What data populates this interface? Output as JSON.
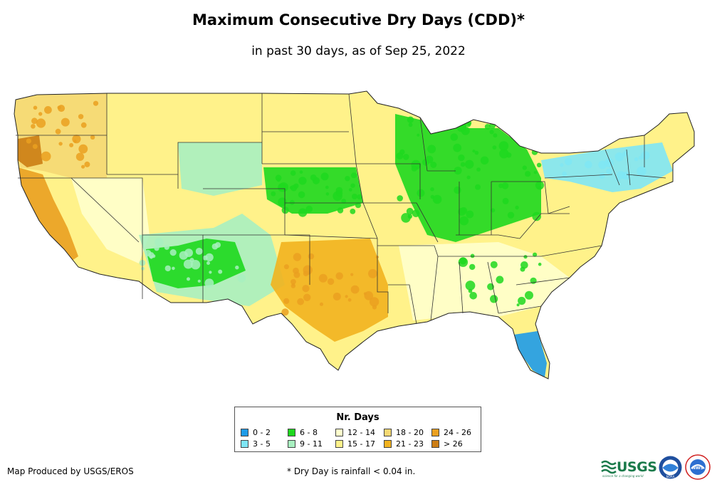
{
  "header": {
    "title": "Maximum Consecutive Dry Days (CDD)*",
    "subtitle": "in past 30 days, as of Sep 25, 2022"
  },
  "legend": {
    "title": "Nr. Days",
    "items": [
      {
        "label": "0 - 2",
        "color": "#1e9be8"
      },
      {
        "label": "3 - 5",
        "color": "#7fe6f5"
      },
      {
        "label": "6 - 8",
        "color": "#1ed81e"
      },
      {
        "label": "9 - 11",
        "color": "#a8f0c0"
      },
      {
        "label": "12 - 14",
        "color": "#ffffcc"
      },
      {
        "label": "15 - 17",
        "color": "#fff28a"
      },
      {
        "label": "18 - 20",
        "color": "#f5d873"
      },
      {
        "label": "21 - 23",
        "color": "#f2b21e"
      },
      {
        "label": "24 - 26",
        "color": "#eaa020"
      },
      {
        "label": "> 26",
        "color": "#cc7d14"
      }
    ]
  },
  "footer": {
    "credit": "Map Produced by USGS/EROS",
    "note": "* Dry Day is rainfall < 0.04 in."
  },
  "logos": {
    "usgs_word": "USGS",
    "usgs_tagline": "science for a changing world",
    "noaa_text": "NOAA",
    "nws_text": "NWS"
  },
  "map_layers": [
    {
      "name": "pacific-northwest-dry",
      "legend_index": 6
    },
    {
      "name": "california-coast-very-dry",
      "legend_index": 8
    },
    {
      "name": "great-basin-dry",
      "legend_index": 4
    },
    {
      "name": "southwest-monsoon-wet",
      "legend_index": 3
    },
    {
      "name": "southwest-green",
      "legend_index": 2
    },
    {
      "name": "texas-oklahoma-dry",
      "legend_index": 7
    },
    {
      "name": "upper-midwest-green",
      "legend_index": 2
    },
    {
      "name": "great-lakes-wet",
      "legend_index": 2
    },
    {
      "name": "northeast-very-wet",
      "legend_index": 1
    },
    {
      "name": "southeast-dry",
      "legend_index": 4
    },
    {
      "name": "florida-very-wet",
      "legend_index": 0
    },
    {
      "name": "plains-moderate",
      "legend_index": 3
    },
    {
      "name": "oregon-extreme",
      "legend_index": 9
    }
  ]
}
